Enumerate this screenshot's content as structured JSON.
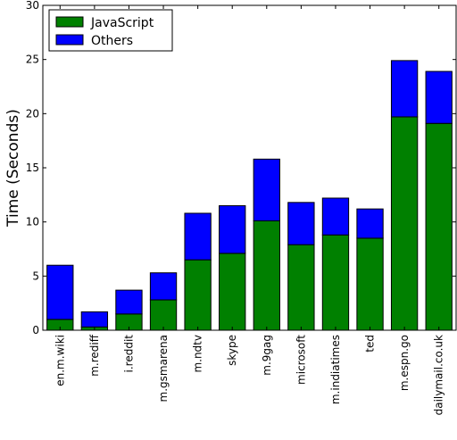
{
  "chart_data": {
    "type": "bar",
    "stacked": true,
    "title": "",
    "xlabel": "",
    "ylabel": "Time (Seconds)",
    "ylim": [
      0,
      30
    ],
    "yticks": [
      0,
      5,
      10,
      15,
      20,
      25,
      30
    ],
    "grid": false,
    "legend_position": "top-left",
    "categories": [
      "en.m.wiki",
      "m.rediff",
      "i.reddit",
      "m.gsmarena",
      "m.ndtv",
      "skype",
      "m.9gag",
      "microsoft",
      "m.indiatimes",
      "ted",
      "m.espn.go",
      "dailymail.co.uk"
    ],
    "series": [
      {
        "name": "JavaScript",
        "color": "#008000",
        "values": [
          1.0,
          0.3,
          1.5,
          2.8,
          6.5,
          7.1,
          10.1,
          7.9,
          8.8,
          8.5,
          19.7,
          19.1
        ]
      },
      {
        "name": "Others",
        "color": "#0000ff",
        "values": [
          5.0,
          1.4,
          2.2,
          2.5,
          4.3,
          4.4,
          5.7,
          3.9,
          3.4,
          2.7,
          5.2,
          4.8
        ]
      }
    ]
  }
}
